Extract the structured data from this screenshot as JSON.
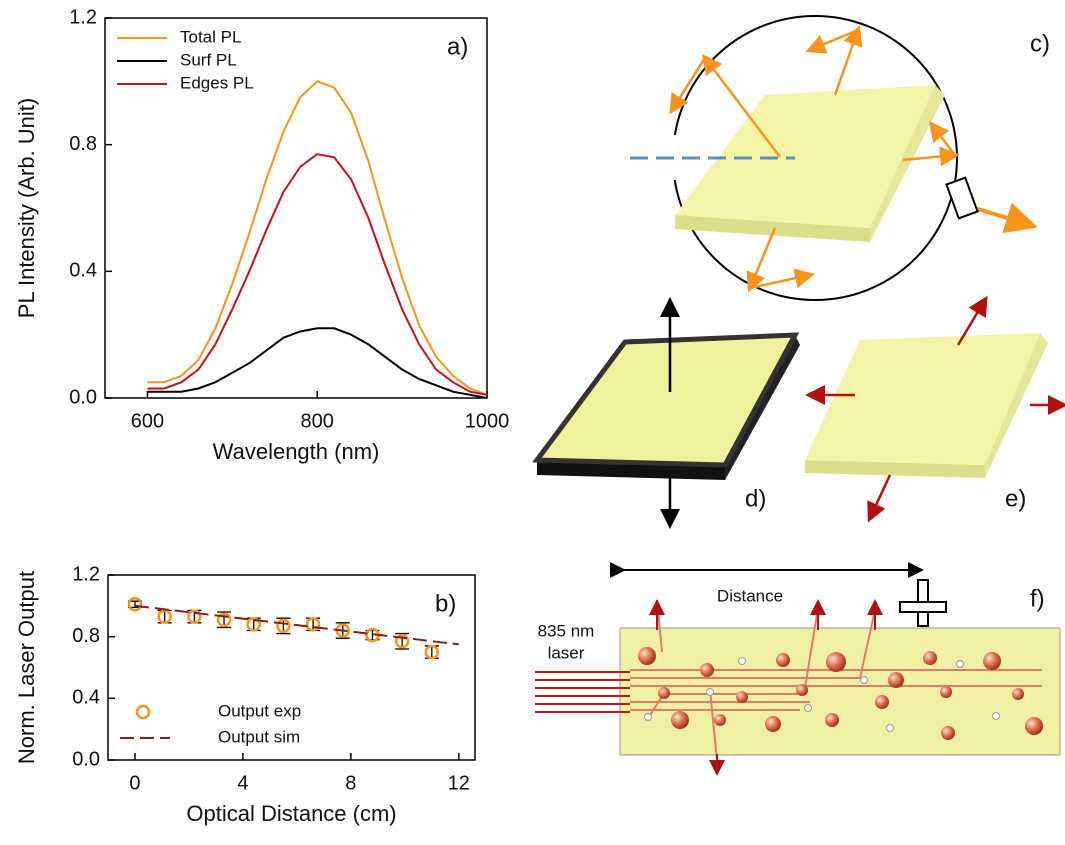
{
  "chart_data": [
    {
      "type": "line",
      "annotation": "a)",
      "x_label": "Wavelength (nm)",
      "y_label": "PL Intensity (Arb. Unit)",
      "x": [
        600,
        620,
        640,
        660,
        680,
        700,
        720,
        740,
        760,
        780,
        800,
        820,
        840,
        860,
        880,
        900,
        920,
        940,
        960,
        980,
        1000
      ],
      "series": [
        {
          "name": "Total PL",
          "color": "#f7941d",
          "values": [
            0.05,
            0.05,
            0.07,
            0.12,
            0.22,
            0.36,
            0.52,
            0.69,
            0.84,
            0.95,
            1.0,
            0.98,
            0.9,
            0.75,
            0.56,
            0.38,
            0.23,
            0.13,
            0.07,
            0.03,
            0.01
          ]
        },
        {
          "name": "Surf PL",
          "color": "#000000",
          "values": [
            0.02,
            0.02,
            0.02,
            0.03,
            0.05,
            0.08,
            0.11,
            0.15,
            0.19,
            0.21,
            0.22,
            0.22,
            0.2,
            0.17,
            0.13,
            0.09,
            0.06,
            0.04,
            0.02,
            0.01,
            0.0
          ]
        },
        {
          "name": "Edges PL",
          "color": "#c0141c",
          "values": [
            0.03,
            0.03,
            0.05,
            0.09,
            0.17,
            0.28,
            0.4,
            0.53,
            0.65,
            0.73,
            0.77,
            0.76,
            0.69,
            0.57,
            0.42,
            0.28,
            0.17,
            0.09,
            0.05,
            0.02,
            0.01
          ]
        }
      ],
      "xlim": [
        550,
        1000
      ],
      "xticks": [
        600,
        800,
        1000
      ],
      "ylim": [
        0,
        1.2
      ],
      "yticks": [
        {
          "value": 0,
          "label": "0.0"
        },
        0.4,
        0.8,
        1.2
      ],
      "legend": "upper left"
    },
    {
      "type": "scatter",
      "annotation": "b)",
      "x_label": "Optical Distance (cm)",
      "y_label": "Norm. Laser Output",
      "series": [
        {
          "name": "Output exp",
          "color": "#f7941d",
          "marker": "open-circle",
          "x": [
            0,
            1.1,
            2.2,
            3.3,
            4.4,
            5.5,
            6.6,
            7.7,
            8.8,
            9.9,
            11
          ],
          "values": [
            1.01,
            0.93,
            0.93,
            0.91,
            0.88,
            0.87,
            0.88,
            0.84,
            0.81,
            0.77,
            0.7
          ],
          "errors": [
            0.02,
            0.04,
            0.04,
            0.05,
            0.04,
            0.05,
            0.04,
            0.05,
            0.03,
            0.05,
            0.04
          ]
        },
        {
          "name": "Output sim",
          "color": "#8b1a1a",
          "line_style": "dashed",
          "x": [
            0,
            12
          ],
          "values": [
            1.0,
            0.75
          ]
        }
      ],
      "xlim": [
        -1,
        12.6
      ],
      "xticks": [
        0,
        4,
        8,
        12
      ],
      "ylim": [
        0,
        1.2
      ],
      "yticks": [
        {
          "value": 0,
          "label": "0.0"
        },
        0.4,
        0.8,
        1.2
      ],
      "legend": "lower left"
    }
  ],
  "diagram": {
    "panel_labels": [
      "c)",
      "d)",
      "e)",
      "f)"
    ],
    "distance_label": "Distance",
    "laser_label": [
      "835 nm",
      "laser"
    ]
  }
}
